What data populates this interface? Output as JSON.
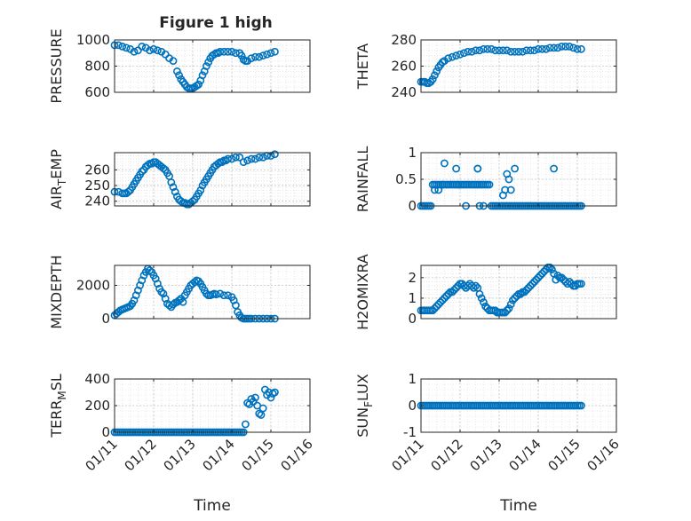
{
  "figure": {
    "title": "Figure 1 high"
  },
  "chart_data": [
    {
      "type": "scatter",
      "title": "Figure 1 high",
      "ylabel": "PRESSURE",
      "xlabel": "",
      "xticks": [
        "01/11",
        "01/12",
        "01/13",
        "01/14",
        "01/15",
        "01/16"
      ],
      "yticks": [
        "600",
        "800",
        "1000"
      ],
      "xlim": [
        11,
        16
      ],
      "ylim": [
        600,
        1000
      ],
      "grid": true,
      "color": "#0072BD",
      "x": [
        11.0,
        11.1,
        11.2,
        11.3,
        11.4,
        11.5,
        11.6,
        11.7,
        11.8,
        11.9,
        12.0,
        12.1,
        12.2,
        12.3,
        12.4,
        12.5,
        12.6,
        12.65,
        12.7,
        12.75,
        12.8,
        12.85,
        12.9,
        12.95,
        13.0,
        13.05,
        13.1,
        13.15,
        13.2,
        13.25,
        13.3,
        13.35,
        13.4,
        13.45,
        13.5,
        13.55,
        13.6,
        13.65,
        13.7,
        13.8,
        13.9,
        14.0,
        14.1,
        14.2,
        14.25,
        14.3,
        14.35,
        14.4,
        14.5,
        14.6,
        14.7,
        14.8,
        14.9,
        15.0,
        15.1
      ],
      "y": [
        960,
        960,
        950,
        940,
        930,
        910,
        920,
        950,
        940,
        920,
        930,
        920,
        910,
        890,
        860,
        840,
        760,
        730,
        700,
        680,
        660,
        640,
        630,
        630,
        630,
        640,
        650,
        660,
        690,
        730,
        760,
        800,
        830,
        860,
        880,
        890,
        900,
        900,
        910,
        910,
        910,
        910,
        900,
        900,
        880,
        850,
        840,
        840,
        860,
        870,
        870,
        880,
        890,
        900,
        910
      ]
    },
    {
      "type": "scatter",
      "ylabel": "THETA",
      "xlabel": "",
      "xticks": [
        "01/11",
        "01/12",
        "01/13",
        "01/14",
        "01/15",
        "01/16"
      ],
      "yticks": [
        "240",
        "260",
        "280"
      ],
      "xlim": [
        11,
        16
      ],
      "ylim": [
        240,
        280
      ],
      "grid": true,
      "color": "#0072BD",
      "x": [
        11.0,
        11.05,
        11.1,
        11.15,
        11.2,
        11.25,
        11.3,
        11.35,
        11.4,
        11.45,
        11.5,
        11.55,
        11.6,
        11.7,
        11.8,
        11.9,
        12.0,
        12.1,
        12.2,
        12.3,
        12.4,
        12.5,
        12.6,
        12.7,
        12.8,
        12.9,
        13.0,
        13.1,
        13.2,
        13.3,
        13.4,
        13.5,
        13.6,
        13.7,
        13.8,
        13.9,
        14.0,
        14.1,
        14.2,
        14.3,
        14.4,
        14.5,
        14.6,
        14.7,
        14.8,
        14.9,
        15.0,
        15.1
      ],
      "y": [
        248,
        248,
        248,
        247,
        247,
        248,
        250,
        253,
        256,
        259,
        261,
        263,
        264,
        266,
        267,
        268,
        269,
        270,
        271,
        271,
        272,
        272,
        273,
        273,
        273,
        272,
        272,
        272,
        272,
        271,
        271,
        271,
        271,
        272,
        272,
        272,
        273,
        273,
        273,
        274,
        274,
        274,
        275,
        275,
        275,
        274,
        273,
        273
      ]
    },
    {
      "type": "scatter",
      "ylabel": "AIR_TEMP",
      "xlabel": "",
      "xticks": [
        "01/11",
        "01/12",
        "01/13",
        "01/14",
        "01/15",
        "01/16"
      ],
      "yticks": [
        "240",
        "250",
        "260"
      ],
      "xlim": [
        11,
        16
      ],
      "ylim": [
        237,
        271
      ],
      "grid": true,
      "color": "#0072BD",
      "x": [
        11.0,
        11.1,
        11.2,
        11.25,
        11.3,
        11.35,
        11.4,
        11.45,
        11.5,
        11.55,
        11.6,
        11.65,
        11.7,
        11.75,
        11.8,
        11.85,
        11.9,
        11.95,
        12.0,
        12.05,
        12.1,
        12.15,
        12.2,
        12.25,
        12.3,
        12.35,
        12.4,
        12.45,
        12.5,
        12.55,
        12.6,
        12.65,
        12.7,
        12.75,
        12.8,
        12.85,
        12.9,
        12.95,
        13.0,
        13.05,
        13.1,
        13.15,
        13.2,
        13.25,
        13.3,
        13.35,
        13.4,
        13.45,
        13.5,
        13.55,
        13.6,
        13.65,
        13.7,
        13.75,
        13.8,
        13.85,
        13.9,
        14.0,
        14.1,
        14.2,
        14.3,
        14.4,
        14.5,
        14.6,
        14.7,
        14.8,
        14.9,
        15.0,
        15.1
      ],
      "y": [
        246,
        246,
        245,
        245,
        245,
        246,
        247,
        249,
        251,
        253,
        255,
        257,
        259,
        260,
        262,
        263,
        264,
        264,
        265,
        265,
        264,
        263,
        262,
        261,
        260,
        258,
        256,
        252,
        249,
        246,
        243,
        241,
        240,
        239,
        239,
        238,
        238,
        239,
        240,
        241,
        243,
        245,
        247,
        250,
        252,
        254,
        256,
        258,
        260,
        262,
        263,
        264,
        265,
        265,
        266,
        266,
        267,
        267,
        268,
        268,
        265,
        266,
        267,
        267,
        268,
        268,
        269,
        269,
        270
      ]
    },
    {
      "type": "scatter",
      "ylabel": "RAINFALL",
      "xlabel": "",
      "xticks": [
        "01/11",
        "01/12",
        "01/13",
        "01/14",
        "01/15",
        "01/16"
      ],
      "yticks": [
        "0",
        "0.5",
        "1"
      ],
      "xlim": [
        11,
        16
      ],
      "ylim": [
        0,
        1
      ],
      "grid": true,
      "color": "#0072BD",
      "x": [
        11.0,
        11.05,
        11.1,
        11.15,
        11.2,
        11.25,
        11.3,
        11.35,
        11.4,
        11.45,
        11.5,
        11.55,
        11.6,
        11.65,
        11.7,
        11.75,
        11.8,
        11.85,
        11.9,
        11.95,
        12.0,
        12.05,
        12.1,
        12.15,
        12.2,
        12.25,
        12.3,
        12.35,
        12.4,
        12.45,
        12.5,
        12.55,
        12.6,
        12.65,
        12.7,
        12.75,
        12.8,
        12.85,
        12.9,
        12.95,
        13.0,
        13.05,
        13.1,
        13.15,
        13.2,
        13.25,
        13.3,
        13.35,
        13.4,
        13.45,
        13.5,
        13.55,
        13.6,
        13.65,
        13.7,
        13.75,
        13.8,
        13.85,
        13.9,
        13.95,
        14.0,
        14.05,
        14.1,
        14.15,
        14.2,
        14.25,
        14.3,
        14.35,
        14.4,
        14.45,
        14.5,
        14.55,
        14.6,
        14.65,
        14.7,
        14.75,
        14.8,
        14.85,
        14.9,
        14.95,
        15.0,
        15.05,
        15.1,
        11.35,
        11.45,
        11.55,
        11.6,
        11.9,
        11.95,
        12.15,
        12.45,
        12.45,
        12.5,
        12.6,
        13.1,
        13.15,
        13.2,
        13.25,
        13.3,
        13.4,
        14.4
      ],
      "y": [
        0,
        0,
        0,
        0,
        0,
        0,
        0.4,
        0.4,
        0.4,
        0.4,
        0.4,
        0.4,
        0.4,
        0.4,
        0.4,
        0.4,
        0.4,
        0.4,
        0.4,
        0.4,
        0.4,
        0.4,
        0.4,
        0.4,
        0.4,
        0.4,
        0.4,
        0.4,
        0.4,
        0.4,
        0.4,
        0.4,
        0.4,
        0.4,
        0.4,
        0.4,
        0,
        0,
        0,
        0,
        0,
        0,
        0,
        0,
        0,
        0,
        0,
        0,
        0,
        0,
        0,
        0,
        0,
        0,
        0,
        0,
        0,
        0,
        0,
        0,
        0,
        0,
        0,
        0,
        0,
        0,
        0,
        0,
        0,
        0,
        0,
        0,
        0,
        0,
        0,
        0,
        0,
        0,
        0,
        0,
        0,
        0,
        0,
        0.3,
        0.3,
        0.4,
        0.8,
        0.7,
        0.4,
        0,
        0.7,
        0.7,
        0,
        0,
        0.2,
        0.3,
        0.6,
        0.5,
        0.3,
        0.7,
        0.7
      ]
    },
    {
      "type": "scatter",
      "ylabel": "MIXDEPTH",
      "xlabel": "",
      "xticks": [
        "01/11",
        "01/12",
        "01/13",
        "01/14",
        "01/15",
        "01/16"
      ],
      "yticks": [
        "0",
        "2000"
      ],
      "xlim": [
        11,
        16
      ],
      "ylim": [
        0,
        3200
      ],
      "grid": true,
      "color": "#0072BD",
      "x": [
        11.0,
        11.05,
        11.1,
        11.15,
        11.2,
        11.25,
        11.3,
        11.35,
        11.4,
        11.45,
        11.5,
        11.55,
        11.6,
        11.65,
        11.7,
        11.75,
        11.8,
        11.85,
        11.9,
        11.95,
        12.0,
        12.05,
        12.1,
        12.15,
        12.2,
        12.25,
        12.3,
        12.35,
        12.4,
        12.45,
        12.5,
        12.55,
        12.6,
        12.65,
        12.7,
        12.75,
        12.8,
        12.85,
        12.9,
        12.95,
        13.0,
        13.05,
        13.1,
        13.15,
        13.2,
        13.25,
        13.3,
        13.35,
        13.4,
        13.45,
        13.5,
        13.55,
        13.6,
        13.7,
        13.8,
        13.9,
        14.0,
        14.05,
        14.1,
        14.15,
        14.2,
        14.25,
        14.3,
        14.35,
        14.4,
        14.45,
        14.5,
        14.6,
        14.7,
        14.8,
        14.9,
        15.0,
        15.1
      ],
      "y": [
        200,
        300,
        400,
        500,
        550,
        600,
        650,
        700,
        750,
        900,
        1100,
        1400,
        1700,
        2000,
        2300,
        2600,
        2800,
        3000,
        2900,
        2800,
        2600,
        2400,
        2100,
        1800,
        1600,
        1500,
        1200,
        900,
        800,
        700,
        850,
        950,
        1000,
        1100,
        1200,
        1000,
        1400,
        1600,
        1800,
        2000,
        2100,
        2200,
        2300,
        2250,
        2100,
        1900,
        1700,
        1500,
        1400,
        1400,
        1450,
        1500,
        1450,
        1500,
        1400,
        1400,
        1300,
        1100,
        800,
        400,
        200,
        50,
        0,
        0,
        0,
        0,
        0,
        0,
        0,
        0,
        0,
        0,
        0
      ]
    },
    {
      "type": "scatter",
      "ylabel": "H2OMIXRA",
      "xlabel": "",
      "xticks": [
        "01/11",
        "01/12",
        "01/13",
        "01/14",
        "01/15",
        "01/16"
      ],
      "yticks": [
        "0",
        "1",
        "2"
      ],
      "xlim": [
        11,
        16
      ],
      "ylim": [
        0,
        2.6
      ],
      "grid": true,
      "color": "#0072BD",
      "x": [
        11.0,
        11.05,
        11.1,
        11.15,
        11.2,
        11.25,
        11.3,
        11.35,
        11.4,
        11.45,
        11.5,
        11.55,
        11.6,
        11.65,
        11.7,
        11.75,
        11.8,
        11.85,
        11.9,
        11.95,
        12.0,
        12.05,
        12.1,
        12.15,
        12.2,
        12.25,
        12.3,
        12.35,
        12.4,
        12.45,
        12.5,
        12.55,
        12.6,
        12.65,
        12.7,
        12.75,
        12.8,
        12.85,
        12.9,
        12.95,
        13.0,
        13.05,
        13.1,
        13.15,
        13.2,
        13.25,
        13.3,
        13.35,
        13.4,
        13.45,
        13.5,
        13.55,
        13.6,
        13.65,
        13.7,
        13.75,
        13.8,
        13.85,
        13.9,
        13.95,
        14.0,
        14.05,
        14.1,
        14.15,
        14.2,
        14.25,
        14.3,
        14.35,
        14.4,
        14.45,
        14.5,
        14.55,
        14.6,
        14.65,
        14.7,
        14.75,
        14.8,
        14.85,
        14.9,
        14.95,
        15.0,
        15.05,
        15.1
      ],
      "y": [
        0.4,
        0.4,
        0.4,
        0.4,
        0.4,
        0.4,
        0.4,
        0.5,
        0.6,
        0.7,
        0.8,
        0.9,
        1.0,
        1.1,
        1.2,
        1.3,
        1.3,
        1.4,
        1.5,
        1.6,
        1.7,
        1.7,
        1.6,
        1.5,
        1.6,
        1.7,
        1.6,
        1.5,
        1.6,
        1.5,
        1.2,
        1.0,
        0.8,
        0.6,
        0.5,
        0.4,
        0.4,
        0.4,
        0.4,
        0.3,
        0.3,
        0.3,
        0.3,
        0.3,
        0.4,
        0.5,
        0.7,
        0.9,
        1.0,
        1.1,
        1.2,
        1.2,
        1.3,
        1.3,
        1.4,
        1.5,
        1.6,
        1.7,
        1.8,
        1.9,
        2.0,
        2.1,
        2.2,
        2.3,
        2.4,
        2.5,
        2.5,
        2.4,
        2.2,
        1.9,
        2.1,
        2.0,
        2.0,
        1.9,
        1.8,
        1.7,
        1.8,
        1.7,
        1.6,
        1.6,
        1.7,
        1.7,
        1.7
      ]
    },
    {
      "type": "scatter",
      "ylabel": "TERR_MSL",
      "xlabel": "Time",
      "xticks": [
        "01/11",
        "01/12",
        "01/13",
        "01/14",
        "01/15",
        "01/16"
      ],
      "yticks": [
        "0",
        "200",
        "400"
      ],
      "xlim": [
        11,
        16
      ],
      "ylim": [
        0,
        400
      ],
      "grid": true,
      "color": "#0072BD",
      "x": [
        11.0,
        11.05,
        11.1,
        11.15,
        11.2,
        11.25,
        11.3,
        11.35,
        11.4,
        11.45,
        11.5,
        11.55,
        11.6,
        11.65,
        11.7,
        11.75,
        11.8,
        11.85,
        11.9,
        11.95,
        12.0,
        12.05,
        12.1,
        12.15,
        12.2,
        12.25,
        12.3,
        12.35,
        12.4,
        12.45,
        12.5,
        12.55,
        12.6,
        12.65,
        12.7,
        12.75,
        12.8,
        12.85,
        12.9,
        12.95,
        13.0,
        13.05,
        13.1,
        13.15,
        13.2,
        13.25,
        13.3,
        13.35,
        13.4,
        13.45,
        13.5,
        13.55,
        13.6,
        13.65,
        13.7,
        13.75,
        13.8,
        13.85,
        13.9,
        13.95,
        14.0,
        14.05,
        14.1,
        14.15,
        14.2,
        14.25,
        14.3,
        14.35,
        14.4,
        14.45,
        14.5,
        14.55,
        14.6,
        14.65,
        14.7,
        14.75,
        14.8,
        14.85,
        14.9,
        14.95,
        15.0,
        15.05,
        15.1
      ],
      "y": [
        0,
        0,
        0,
        0,
        0,
        0,
        0,
        0,
        0,
        0,
        0,
        0,
        0,
        0,
        0,
        0,
        0,
        0,
        0,
        0,
        0,
        0,
        0,
        0,
        0,
        0,
        0,
        0,
        0,
        0,
        0,
        0,
        0,
        0,
        0,
        0,
        0,
        0,
        0,
        0,
        0,
        0,
        0,
        0,
        0,
        0,
        0,
        0,
        0,
        0,
        0,
        0,
        0,
        0,
        0,
        0,
        0,
        0,
        0,
        0,
        0,
        0,
        0,
        0,
        0,
        0,
        0,
        60,
        220,
        210,
        250,
        230,
        260,
        200,
        140,
        130,
        180,
        320,
        280,
        300,
        260,
        290,
        300
      ]
    },
    {
      "type": "scatter",
      "ylabel": "SUN_FLUX",
      "xlabel": "Time",
      "xticks": [
        "01/11",
        "01/12",
        "01/13",
        "01/14",
        "01/15",
        "01/16"
      ],
      "yticks": [
        "-1",
        "0",
        "1"
      ],
      "xlim": [
        11,
        16
      ],
      "ylim": [
        -1,
        1
      ],
      "grid": true,
      "color": "#0072BD",
      "x": [
        11.0,
        11.05,
        11.1,
        11.15,
        11.2,
        11.25,
        11.3,
        11.35,
        11.4,
        11.45,
        11.5,
        11.55,
        11.6,
        11.65,
        11.7,
        11.75,
        11.8,
        11.85,
        11.9,
        11.95,
        12.0,
        12.05,
        12.1,
        12.15,
        12.2,
        12.25,
        12.3,
        12.35,
        12.4,
        12.45,
        12.5,
        12.55,
        12.6,
        12.65,
        12.7,
        12.75,
        12.8,
        12.85,
        12.9,
        12.95,
        13.0,
        13.05,
        13.1,
        13.15,
        13.2,
        13.25,
        13.3,
        13.35,
        13.4,
        13.45,
        13.5,
        13.55,
        13.6,
        13.65,
        13.7,
        13.75,
        13.8,
        13.85,
        13.9,
        13.95,
        14.0,
        14.05,
        14.1,
        14.15,
        14.2,
        14.25,
        14.3,
        14.35,
        14.4,
        14.45,
        14.5,
        14.55,
        14.6,
        14.65,
        14.7,
        14.75,
        14.8,
        14.85,
        14.9,
        14.95,
        15.0,
        15.05,
        15.1
      ],
      "y": [
        0,
        0,
        0,
        0,
        0,
        0,
        0,
        0,
        0,
        0,
        0,
        0,
        0,
        0,
        0,
        0,
        0,
        0,
        0,
        0,
        0,
        0,
        0,
        0,
        0,
        0,
        0,
        0,
        0,
        0,
        0,
        0,
        0,
        0,
        0,
        0,
        0,
        0,
        0,
        0,
        0,
        0,
        0,
        0,
        0,
        0,
        0,
        0,
        0,
        0,
        0,
        0,
        0,
        0,
        0,
        0,
        0,
        0,
        0,
        0,
        0,
        0,
        0,
        0,
        0,
        0,
        0,
        0,
        0,
        0,
        0,
        0,
        0,
        0,
        0,
        0,
        0,
        0,
        0,
        0,
        0,
        0,
        0
      ]
    }
  ]
}
